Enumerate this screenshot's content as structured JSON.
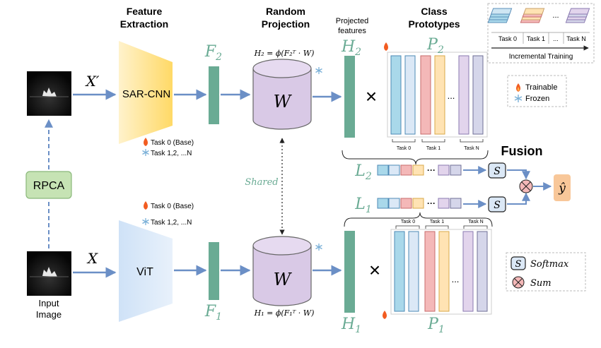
{
  "headers": {
    "feature_extraction": [
      "Feature",
      "Extraction"
    ],
    "random_projection": [
      "Random",
      "Projection"
    ],
    "projected_features": [
      "Projected",
      "features"
    ],
    "class_prototypes": [
      "Class",
      "Prototypes"
    ]
  },
  "top_branch": {
    "input_label": "X′",
    "backbone_label": "SAR-CNN",
    "feature_label": "F",
    "feature_sub": "2",
    "projection_formula": "H₂ = ϕ(F₂ᵀ · W)",
    "projection_matrix": "W",
    "hidden_label": "H",
    "hidden_sub": "2",
    "prototype_label": "P",
    "prototype_sub": "2",
    "task_status": [
      "Task 0 (Base)",
      "Task 1,2, ...N"
    ],
    "task_ticks": [
      "Task 0",
      "Task 1",
      "Task N"
    ]
  },
  "bottom_branch": {
    "input_label": "X",
    "backbone_label": "ViT",
    "feature_label": "F",
    "feature_sub": "1",
    "projection_formula": "H₁ = ϕ(F₁ᵀ · W)",
    "projection_matrix": "W",
    "hidden_label": "H",
    "hidden_sub": "1",
    "prototype_label": "P",
    "prototype_sub": "1",
    "task_status": [
      "Task 0 (Base)",
      "Task 1,2, ...N"
    ],
    "task_ticks": [
      "Task 0",
      "Task 1",
      "Task N"
    ]
  },
  "preprocess": {
    "rpca_label": "RPCA",
    "input_image_label": [
      "Input",
      "Image"
    ]
  },
  "shared_label": "Shared",
  "fusion": {
    "title": "Fusion",
    "logit_top_label": "L",
    "logit_top_sub": "2",
    "logit_bottom_label": "L",
    "logit_bottom_sub": "1",
    "softmax_symbol": "S",
    "output_label": "ŷ",
    "ellipsis": "···"
  },
  "operators": {
    "multiply": "×",
    "prototype_ellipsis": "..."
  },
  "incremental_training": {
    "title": "Incremental Training",
    "tasks": [
      "Task 0",
      "Task 1",
      "...",
      "Task N"
    ]
  },
  "legend_top": {
    "trainable": "Trainable",
    "frozen": "Frozen"
  },
  "legend_bottom": {
    "softmax_symbol": "S",
    "softmax": "Softmax",
    "sum": "Sum"
  },
  "colors": {
    "feature_bar": "#6aab94",
    "arrow": "#6b8fc6",
    "cnn_fill": "#ffd966",
    "vit_fill": "#cfe2f7",
    "cylinder": "#d9c9e6",
    "rpca_fill": "#c6e3b4",
    "output_fill": "#f8c799",
    "blue_block": "#a9d8ea",
    "light_blue_block": "#dbe8f6",
    "red_block": "#f4b8b8",
    "orange_block": "#ffe3b3",
    "purple_block": "#e2d4ec",
    "lavender_block": "#d5d6ea"
  }
}
